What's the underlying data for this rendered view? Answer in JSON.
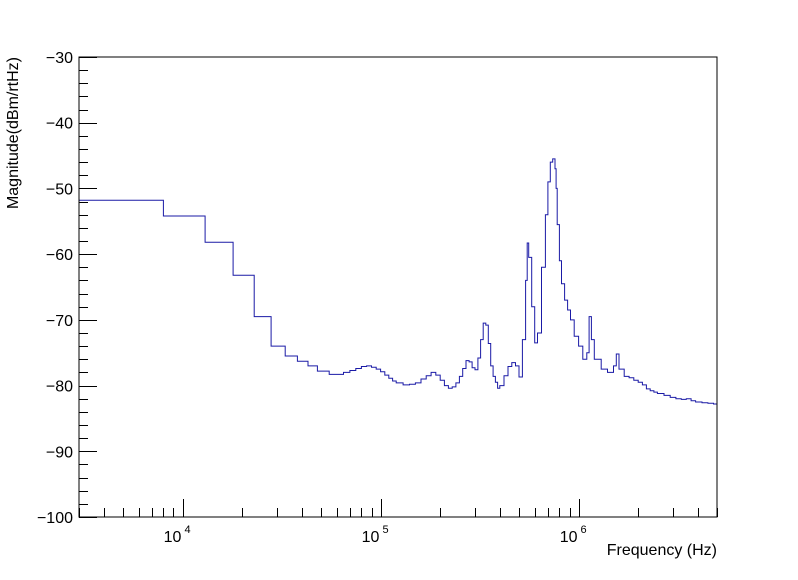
{
  "chart_data": {
    "type": "line",
    "title": "",
    "xlabel": "Frequency (Hz)",
    "ylabel": "Magnitude(dBm/rtHz)",
    "xscale": "log",
    "xlim": [
      3000,
      5000000
    ],
    "ylim": [
      -100,
      -30
    ],
    "x_tick_labels": [
      {
        "value": 10000,
        "base": "10",
        "exp": "4"
      },
      {
        "value": 100000,
        "base": "10",
        "exp": "5"
      },
      {
        "value": 1000000,
        "base": "10",
        "exp": "6"
      }
    ],
    "y_ticks": [
      -100,
      -90,
      -80,
      -70,
      -60,
      -50,
      -40,
      -30
    ],
    "y_tick_labels": [
      "−100",
      "−90",
      "−80",
      "−70",
      "−60",
      "−50",
      "−40",
      "−30"
    ],
    "grid": false,
    "legend": "none",
    "colors": {
      "series": "#1a1aa6",
      "axis": "#000000",
      "background": "#ffffff"
    },
    "series": [
      {
        "step": true,
        "x": [
          3000,
          8000,
          13000,
          18000,
          23000,
          28000,
          33000,
          38000,
          43000,
          48000,
          55000,
          60000,
          65000,
          70000,
          75000,
          80000,
          85000,
          90000,
          95000,
          100000,
          105000,
          110000,
          115000,
          120000,
          130000,
          140000,
          150000,
          160000,
          170000,
          180000,
          190000,
          200000,
          210000,
          220000,
          230000,
          240000,
          250000,
          260000,
          270000,
          280000,
          290000,
          300000,
          310000,
          320000,
          330000,
          340000,
          350000,
          360000,
          370000,
          380000,
          390000,
          400000,
          420000,
          440000,
          460000,
          480000,
          500000,
          520000,
          540000,
          550000,
          560000,
          580000,
          600000,
          620000,
          650000,
          680000,
          700000,
          720000,
          740000,
          760000,
          770000,
          780000,
          800000,
          820000,
          850000,
          880000,
          910000,
          950000,
          1000000,
          1050000,
          1100000,
          1130000,
          1160000,
          1200000,
          1300000,
          1400000,
          1500000,
          1550000,
          1600000,
          1700000,
          1800000,
          1900000,
          2000000,
          2100000,
          2200000,
          2300000,
          2400000,
          2500000,
          2700000,
          2900000,
          3100000,
          3300000,
          3500000,
          3700000,
          3900000,
          4200000,
          4500000,
          4800000,
          5000000
        ],
        "values": [
          -51.8,
          -54.2,
          -58.2,
          -63.2,
          -69.5,
          -74.0,
          -75.5,
          -76.3,
          -77.0,
          -77.8,
          -78.3,
          -78.3,
          -78.0,
          -77.7,
          -77.4,
          -77.1,
          -77.0,
          -77.2,
          -77.5,
          -77.9,
          -78.4,
          -78.9,
          -79.3,
          -79.6,
          -79.9,
          -79.8,
          -79.6,
          -79.0,
          -78.5,
          -78.0,
          -78.4,
          -79.2,
          -80.0,
          -80.4,
          -80.2,
          -79.6,
          -78.6,
          -77.4,
          -76.2,
          -76.4,
          -77.3,
          -77.6,
          -75.8,
          -73.0,
          -70.5,
          -70.8,
          -73.6,
          -77.0,
          -78.6,
          -79.5,
          -80.4,
          -80.0,
          -78.5,
          -77.1,
          -76.5,
          -77.0,
          -78.7,
          -73.0,
          -64.0,
          -58.3,
          -60.5,
          -68.0,
          -73.5,
          -72.0,
          -62.0,
          -54.0,
          -49.0,
          -46.0,
          -45.5,
          -47.0,
          -50.0,
          -55.5,
          -61.0,
          -64.5,
          -67.0,
          -68.5,
          -70.0,
          -72.5,
          -74.0,
          -76.0,
          -75.0,
          -69.5,
          -73.0,
          -76.0,
          -77.5,
          -78.0,
          -77.0,
          -75.2,
          -77.5,
          -78.6,
          -78.8,
          -79.2,
          -79.5,
          -79.9,
          -80.5,
          -80.8,
          -81.0,
          -81.2,
          -81.5,
          -81.8,
          -82.0,
          -82.1,
          -82.0,
          -82.3,
          -82.5,
          -82.6,
          -82.7,
          -82.8,
          -83.0
        ]
      }
    ]
  }
}
